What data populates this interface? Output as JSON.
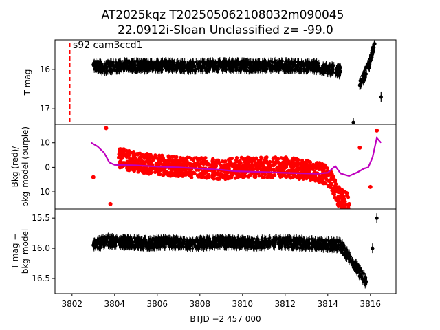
{
  "chart_data": {
    "type": "scatter",
    "title": [
      "AT2025kqz  T202505062108032m090045",
      "22.0912i-Sloan Unclassified z= -99.0"
    ],
    "xlabel": "BTJD −2 457 000",
    "xlim": [
      3801.2,
      3817.2
    ],
    "xticks": [
      3802,
      3804,
      3806,
      3808,
      3810,
      3812,
      3814,
      3816
    ],
    "annotation": "s92 cam3ccd1",
    "marker_x": 3801.9,
    "panels": [
      {
        "ylabel": "T mag",
        "ylim": [
          17.4,
          15.25
        ],
        "yticks": [
          16,
          17
        ],
        "series": [
          {
            "kind": "errorbar",
            "color": "#000000",
            "points": [
              {
                "x": 3803.0,
                "y": 15.88
              },
              {
                "x": 3803.5,
                "y": 15.95
              },
              {
                "x": 3804.5,
                "y": 15.9
              },
              {
                "x": 3805.5,
                "y": 15.92
              },
              {
                "x": 3806.5,
                "y": 15.9
              },
              {
                "x": 3807.5,
                "y": 15.93
              },
              {
                "x": 3808.5,
                "y": 15.91
              },
              {
                "x": 3809.4,
                "y": 15.9
              },
              {
                "x": 3810.5,
                "y": 15.92
              },
              {
                "x": 3811.5,
                "y": 15.9
              },
              {
                "x": 3812.5,
                "y": 15.91
              },
              {
                "x": 3813.5,
                "y": 15.93
              },
              {
                "x": 3814.6,
                "y": 16.05
              },
              {
                "x": 3815.2,
                "y": 17.35
              },
              {
                "x": 3815.5,
                "y": 16.4
              },
              {
                "x": 3815.9,
                "y": 15.95
              },
              {
                "x": 3816.2,
                "y": 15.35
              },
              {
                "x": 3816.5,
                "y": 16.7
              }
            ]
          }
        ]
      },
      {
        "ylabel": "Bkg (red)/\nbkg_model (purple)",
        "ylim": [
          -17,
          17.5
        ],
        "yticks": [
          -10,
          0,
          10
        ],
        "series": [
          {
            "name": "Bkg",
            "kind": "scatter",
            "color": "#ff0000",
            "points": [
              {
                "x": 3803.0,
                "y": -4
              },
              {
                "x": 3803.6,
                "y": 16
              },
              {
                "x": 3803.8,
                "y": -15
              },
              {
                "x": 3804.2,
                "y": 4
              },
              {
                "x": 3805.0,
                "y": 2
              },
              {
                "x": 3806.0,
                "y": 1
              },
              {
                "x": 3807.0,
                "y": 0
              },
              {
                "x": 3808.0,
                "y": 0
              },
              {
                "x": 3809.0,
                "y": -1
              },
              {
                "x": 3810.0,
                "y": 0
              },
              {
                "x": 3811.0,
                "y": 0
              },
              {
                "x": 3812.0,
                "y": 0
              },
              {
                "x": 3813.0,
                "y": -1
              },
              {
                "x": 3814.0,
                "y": -3
              },
              {
                "x": 3814.5,
                "y": -12
              },
              {
                "x": 3815.0,
                "y": -15
              },
              {
                "x": 3815.5,
                "y": 8
              },
              {
                "x": 3816.0,
                "y": -8
              },
              {
                "x": 3816.3,
                "y": 15
              }
            ]
          },
          {
            "name": "bkg_model",
            "kind": "line",
            "color": "#bf00bf",
            "points": [
              {
                "x": 3802.9,
                "y": 10
              },
              {
                "x": 3803.2,
                "y": 8.5
              },
              {
                "x": 3803.5,
                "y": 6
              },
              {
                "x": 3803.75,
                "y": 2
              },
              {
                "x": 3804.0,
                "y": 1
              },
              {
                "x": 3805.0,
                "y": 0.8
              },
              {
                "x": 3806.0,
                "y": 0.3
              },
              {
                "x": 3807.0,
                "y": 0
              },
              {
                "x": 3808.0,
                "y": -0.5
              },
              {
                "x": 3809.0,
                "y": -1
              },
              {
                "x": 3809.7,
                "y": -1.6
              },
              {
                "x": 3810.5,
                "y": -1.8
              },
              {
                "x": 3811.5,
                "y": -2.1
              },
              {
                "x": 3812.5,
                "y": -2.4
              },
              {
                "x": 3813.5,
                "y": -2.6
              },
              {
                "x": 3814.0,
                "y": -2.2
              },
              {
                "x": 3814.35,
                "y": 0.5
              },
              {
                "x": 3814.6,
                "y": -2.5
              },
              {
                "x": 3815.0,
                "y": -3.5
              },
              {
                "x": 3815.4,
                "y": -2
              },
              {
                "x": 3815.7,
                "y": -0.5
              },
              {
                "x": 3815.9,
                "y": 0
              },
              {
                "x": 3816.1,
                "y": 4
              },
              {
                "x": 3816.3,
                "y": 12
              },
              {
                "x": 3816.5,
                "y": 10
              }
            ]
          }
        ]
      },
      {
        "ylabel": "T mag −\nbkg_model",
        "ylim": [
          16.75,
          15.35
        ],
        "yticks": [
          15.5,
          16.0,
          16.5
        ],
        "series": [
          {
            "kind": "errorbar",
            "color": "#000000",
            "points": [
              {
                "x": 3803.0,
                "y": 15.95
              },
              {
                "x": 3803.6,
                "y": 15.88
              },
              {
                "x": 3804.5,
                "y": 15.9
              },
              {
                "x": 3805.5,
                "y": 15.92
              },
              {
                "x": 3806.5,
                "y": 15.9
              },
              {
                "x": 3807.5,
                "y": 15.93
              },
              {
                "x": 3808.5,
                "y": 15.91
              },
              {
                "x": 3809.4,
                "y": 15.9
              },
              {
                "x": 3810.5,
                "y": 15.92
              },
              {
                "x": 3811.5,
                "y": 15.9
              },
              {
                "x": 3812.5,
                "y": 15.91
              },
              {
                "x": 3813.5,
                "y": 15.93
              },
              {
                "x": 3814.6,
                "y": 15.95
              },
              {
                "x": 3815.3,
                "y": 16.3
              },
              {
                "x": 3815.8,
                "y": 16.55
              },
              {
                "x": 3816.1,
                "y": 16.0
              },
              {
                "x": 3816.3,
                "y": 15.5
              }
            ]
          }
        ]
      }
    ]
  }
}
